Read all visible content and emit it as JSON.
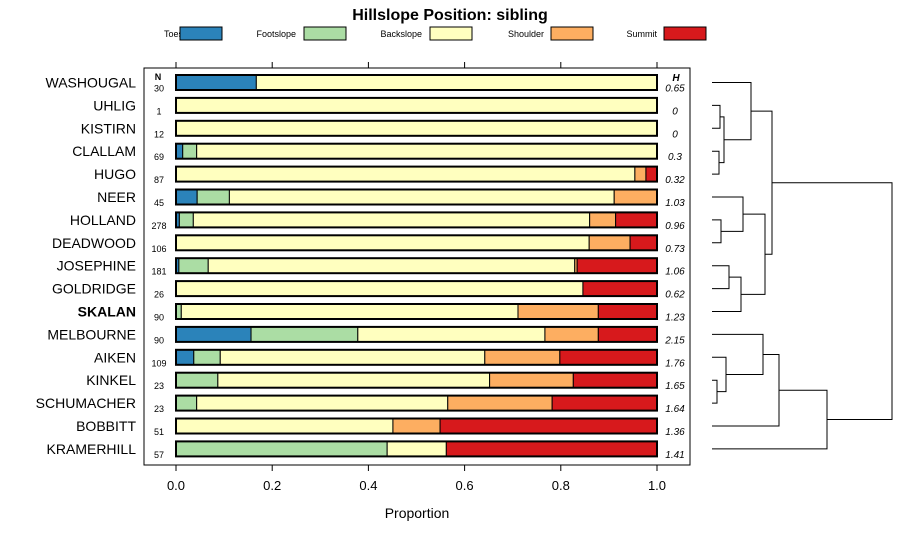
{
  "chart_data": {
    "type": "bar",
    "stacked": true,
    "orientation": "horizontal",
    "title": "Hillslope Position: sibling",
    "xlabel": "Proportion",
    "ylabel": "",
    "xlim": [
      0,
      1
    ],
    "xticks": [
      0.0,
      0.2,
      0.4,
      0.6,
      0.8,
      1.0
    ],
    "xtick_labels": [
      "0.0",
      "0.2",
      "0.4",
      "0.6",
      "0.8",
      "1.0"
    ],
    "grid": false,
    "legend_position": "top",
    "n_header": "N",
    "h_header": "H",
    "highlight_category": "SKALAN",
    "series_names": [
      "Toeslope",
      "Footslope",
      "Backslope",
      "Shoulder",
      "Summit"
    ],
    "series_colors": [
      "#2b83ba",
      "#abdda4",
      "#ffffbf",
      "#fdae61",
      "#d7191c"
    ],
    "categories": [
      "WASHOUGAL",
      "UHLIG",
      "KISTIRN",
      "CLALLAM",
      "HUGO",
      "NEER",
      "HOLLAND",
      "DEADWOOD",
      "JOSEPHINE",
      "GOLDRIDGE",
      "SKALAN",
      "MELBOURNE",
      "AIKEN",
      "KINKEL",
      "SCHUMACHER",
      "BOBBITT",
      "KRAMERHILL"
    ],
    "n_values": [
      "30",
      "1",
      "12",
      "69",
      "87",
      "45",
      "278",
      "106",
      "181",
      "26",
      "90",
      "90",
      "109",
      "23",
      "23",
      "51",
      "57"
    ],
    "h_values": [
      "0.65",
      "0",
      "0",
      "0.3",
      "0.32",
      "1.03",
      "0.96",
      "0.73",
      "1.06",
      "0.62",
      "1.23",
      "2.15",
      "1.76",
      "1.65",
      "1.64",
      "1.36",
      "1.41"
    ],
    "series": [
      {
        "name": "Toeslope",
        "values": [
          0.167,
          0,
          0,
          0.014,
          0,
          0.044,
          0.007,
          0,
          0.006,
          0,
          0,
          0.156,
          0.037,
          0,
          0,
          0,
          0
        ]
      },
      {
        "name": "Footslope",
        "values": [
          0,
          0,
          0,
          0.029,
          0,
          0.067,
          0.029,
          0,
          0.061,
          0,
          0.011,
          0.222,
          0.055,
          0.087,
          0.043,
          0,
          0.439
        ]
      },
      {
        "name": "Backslope",
        "values": [
          0.833,
          1.0,
          1.0,
          0.957,
          0.954,
          0.8,
          0.824,
          0.859,
          0.762,
          0.846,
          0.7,
          0.389,
          0.55,
          0.565,
          0.522,
          0.451,
          0.123
        ]
      },
      {
        "name": "Shoulder",
        "values": [
          0,
          0,
          0,
          0,
          0.023,
          0.089,
          0.054,
          0.085,
          0.005,
          0,
          0.167,
          0.111,
          0.156,
          0.174,
          0.217,
          0.098,
          0
        ]
      },
      {
        "name": "Summit",
        "values": [
          0,
          0,
          0,
          0,
          0.023,
          0,
          0.086,
          0.056,
          0.166,
          0.154,
          0.122,
          0.122,
          0.202,
          0.174,
          0.218,
          0.451,
          0.438
        ]
      }
    ]
  }
}
